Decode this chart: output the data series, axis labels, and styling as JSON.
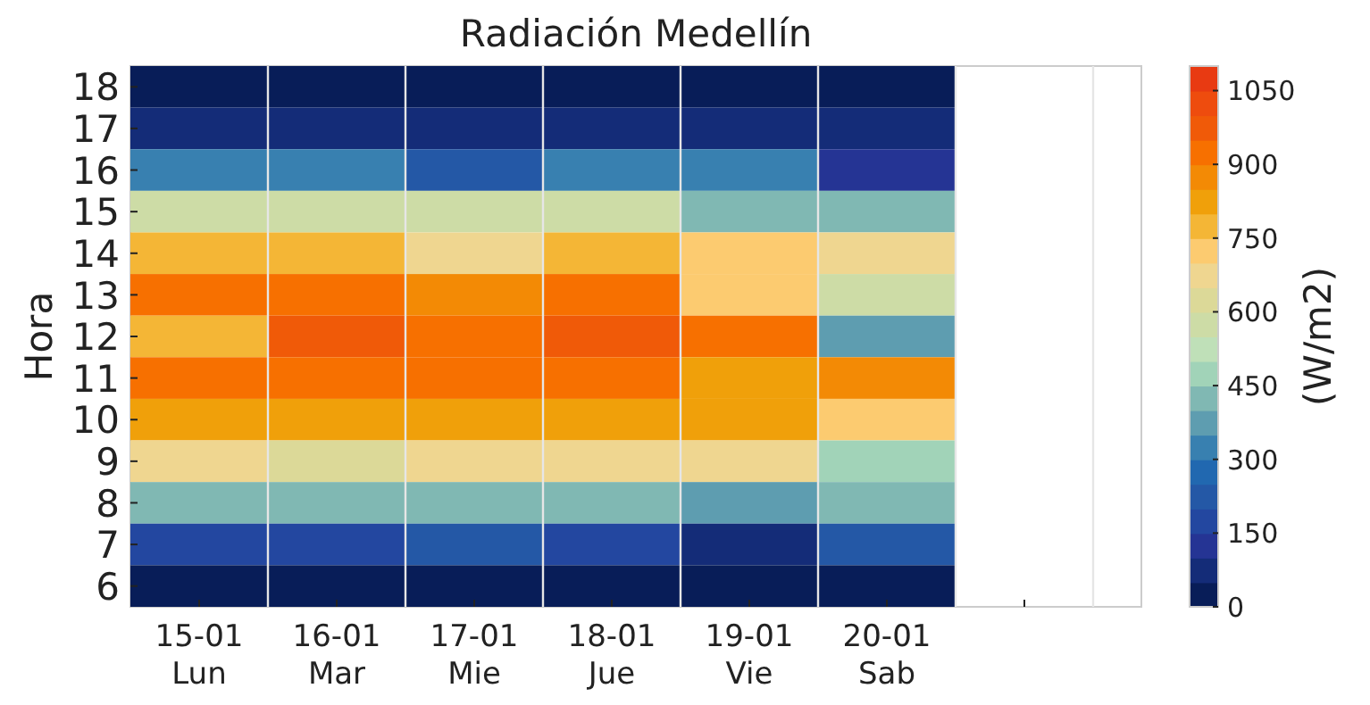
{
  "chart_data": {
    "type": "heatmap",
    "title": "Radiación Medellín",
    "ylabel": "Hora",
    "clabel": "(W/m2)",
    "categories": [
      "15-01\nLun",
      "16-01\nMar",
      "17-01\nMie",
      "18-01\nJue",
      "19-01\nVie",
      "20-01\nSab",
      null
    ],
    "y_categories": [
      "18",
      "17",
      "16",
      "15",
      "14",
      "13",
      "12",
      "11",
      "10",
      "9",
      "8",
      "7",
      "6"
    ],
    "cells": [
      [
        25,
        25,
        25,
        25,
        25,
        25,
        null
      ],
      [
        75,
        75,
        75,
        75,
        75,
        75,
        null
      ],
      [
        325,
        325,
        225,
        325,
        325,
        125,
        null
      ],
      [
        575,
        575,
        575,
        575,
        425,
        425,
        null
      ],
      [
        775,
        775,
        675,
        775,
        725,
        675,
        null
      ],
      [
        925,
        925,
        875,
        925,
        725,
        575,
        null
      ],
      [
        775,
        975,
        925,
        975,
        925,
        375,
        null
      ],
      [
        925,
        925,
        925,
        925,
        825,
        875,
        null
      ],
      [
        825,
        825,
        825,
        825,
        825,
        725,
        null
      ],
      [
        675,
        625,
        675,
        675,
        675,
        475,
        null
      ],
      [
        425,
        425,
        425,
        425,
        375,
        425,
        null
      ],
      [
        175,
        175,
        225,
        175,
        75,
        225,
        null
      ],
      [
        25,
        25,
        25,
        25,
        25,
        25,
        null
      ]
    ],
    "clim": [
      0,
      1100
    ],
    "cticks": [
      0,
      150,
      300,
      450,
      600,
      750,
      900,
      1050
    ],
    "colors": [
      "#081d58",
      "#142c78",
      "#253494",
      "#2347a0",
      "#2458a6",
      "#2168b0",
      "#3880b0",
      "#5e9db0",
      "#80b8b3",
      "#a1d3b8",
      "#bfe0b8",
      "#cddca6",
      "#dcd998",
      "#efd690",
      "#fccb70",
      "#f4b636",
      "#f0a00a",
      "#f38a05",
      "#f77000",
      "#f05a08",
      "#ee4c0e",
      "#e83a12"
    ],
    "grid": "x"
  }
}
